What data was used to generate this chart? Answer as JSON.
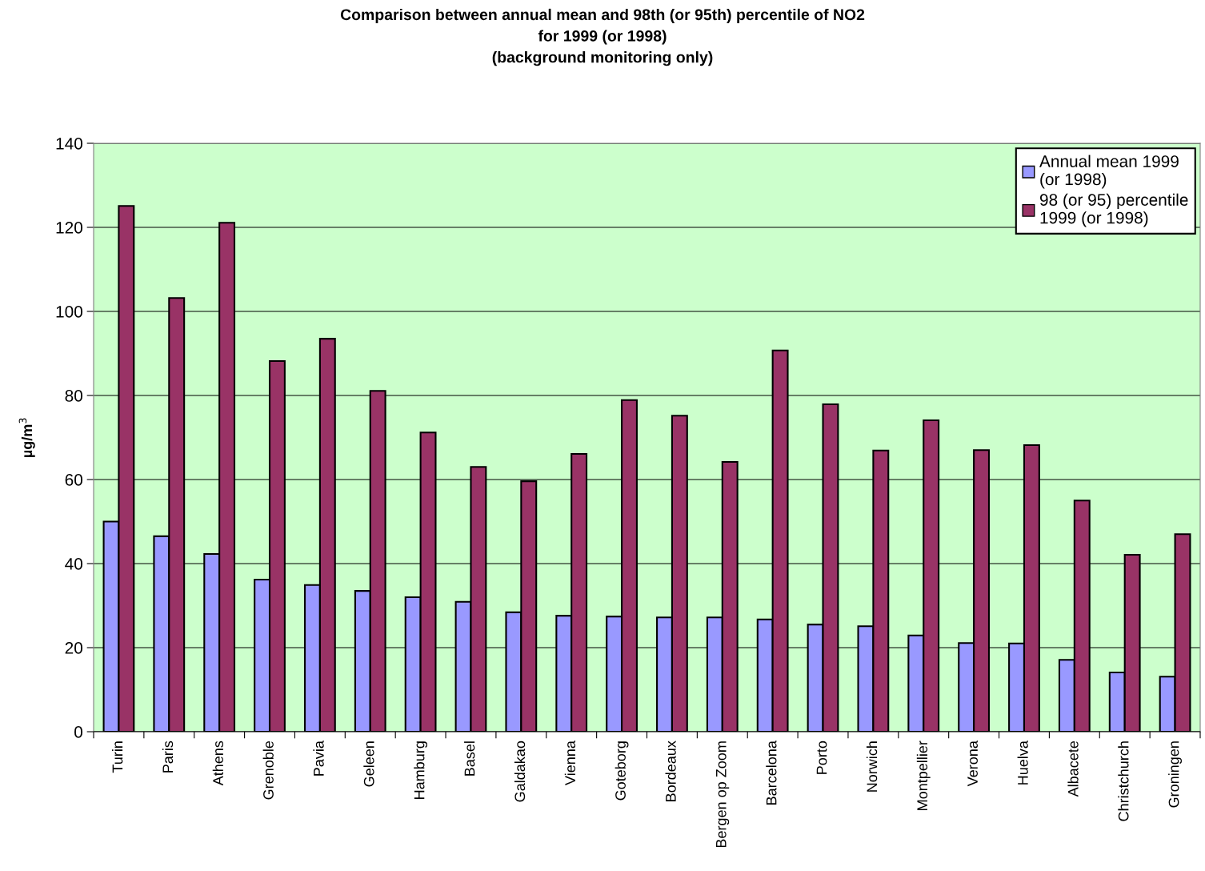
{
  "chart_data": {
    "type": "bar",
    "title": "Comparison between annual mean and 98th (or 95th) percentile of NO2\nfor 1999 (or 1998)\n(background monitoring only)",
    "ylabel": "µg/m$^{3}$",
    "categories": [
      "Turin",
      "Paris",
      "Athens",
      "Grenoble",
      "Pavia",
      "Geleen",
      "Hamburg",
      "Basel",
      "Galdakao",
      "Vienna",
      "Goteborg",
      "Bordeaux",
      "Bergen op Zoom",
      "Barcelona",
      "Porto",
      "Norwich",
      "Montpellier",
      "Verona",
      "Huelva",
      "Albacete",
      "Christchurch",
      "Groningen"
    ],
    "series": [
      {
        "name": "Annual mean 1999\n(or 1998)",
        "color": "#9999ff",
        "values": [
          50,
          46.5,
          42.3,
          36.2,
          34.9,
          33.5,
          32,
          30.9,
          28.4,
          27.6,
          27.4,
          27.2,
          27.2,
          26.7,
          25.5,
          25.1,
          22.9,
          21.1,
          21,
          17.1,
          14.1,
          13.1
        ]
      },
      {
        "name": "98 (or 95) percentile\n1999 (or 1998)",
        "color": "#993366",
        "values": [
          125.1,
          103.2,
          121.1,
          88.2,
          93.5,
          81.1,
          71.2,
          63,
          59.6,
          66.1,
          78.9,
          75.2,
          64.2,
          90.7,
          77.9,
          66.9,
          74.1,
          67,
          68.2,
          55,
          42.1,
          47
        ]
      }
    ],
    "ylim": [
      0,
      140
    ],
    "yticks": [
      0,
      20,
      40,
      60,
      80,
      100,
      120,
      140
    ],
    "grid": "y",
    "legend": "top right"
  }
}
